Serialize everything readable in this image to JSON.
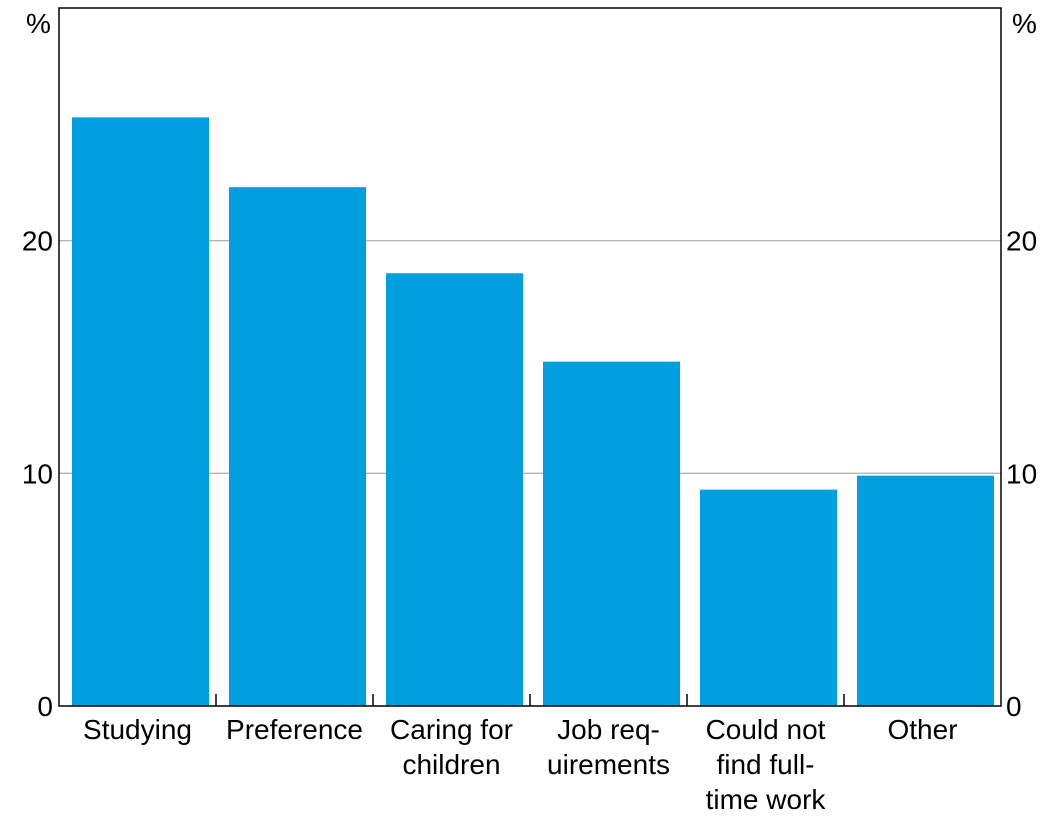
{
  "chart_data": {
    "type": "bar",
    "title": "",
    "xlabel": "",
    "ylabel": "",
    "y_unit_left": "%",
    "y_unit_right": "%",
    "categories": [
      [
        "Studying"
      ],
      [
        "Preference"
      ],
      [
        "Caring for",
        "children"
      ],
      [
        "Job req-",
        "uirements"
      ],
      [
        "Could not",
        "find full-",
        "time work"
      ],
      [
        "Other"
      ]
    ],
    "values": [
      25.3,
      22.3,
      18.6,
      14.8,
      9.3,
      9.9
    ],
    "ylim": [
      0,
      30
    ],
    "yticks": [
      0,
      10,
      20
    ],
    "ytick_labels": [
      "0",
      "10",
      "20"
    ],
    "grid": true,
    "legend": "none",
    "bar_color": "#009fdf",
    "grid_color": "#b4b4b4"
  }
}
